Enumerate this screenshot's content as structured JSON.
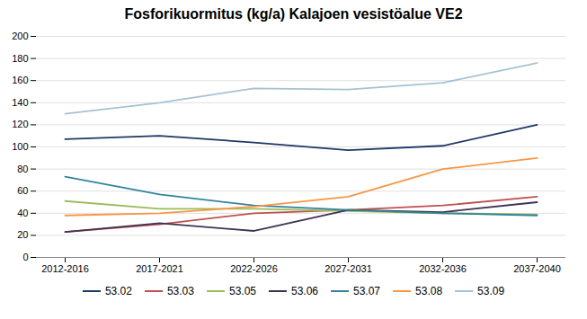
{
  "chart_data": {
    "type": "line",
    "title": "Fosforikuormitus (kg/a) Kalajoen vesistöalue VE2",
    "categories": [
      "2012-2016",
      "2017-2021",
      "2022-2026",
      "2027-2031",
      "2032-2036",
      "2037-2040"
    ],
    "series": [
      {
        "name": "53.02",
        "color": "#1F3864",
        "values": [
          107,
          110,
          104,
          97,
          101,
          120
        ]
      },
      {
        "name": "53.03",
        "color": "#C0504D",
        "values": [
          23,
          30,
          40,
          43,
          47,
          55
        ]
      },
      {
        "name": "53.05",
        "color": "#9BBB59",
        "values": [
          51,
          44,
          44,
          42,
          40,
          39
        ]
      },
      {
        "name": "53.06",
        "color": "#403152",
        "values": [
          23,
          31,
          24,
          43,
          41,
          50
        ]
      },
      {
        "name": "53.07",
        "color": "#31849B",
        "values": [
          73,
          57,
          47,
          43,
          40,
          38
        ]
      },
      {
        "name": "53.08",
        "color": "#F79646",
        "values": [
          38,
          40,
          46,
          55,
          80,
          90
        ]
      },
      {
        "name": "53.09",
        "color": "#A6C2D4",
        "values": [
          130,
          140,
          153,
          152,
          158,
          176
        ]
      }
    ],
    "ylim": [
      0,
      200
    ],
    "yticks": [
      0,
      20,
      40,
      60,
      80,
      100,
      120,
      140,
      160,
      180,
      200
    ],
    "grid": true,
    "legend": "bottom"
  }
}
